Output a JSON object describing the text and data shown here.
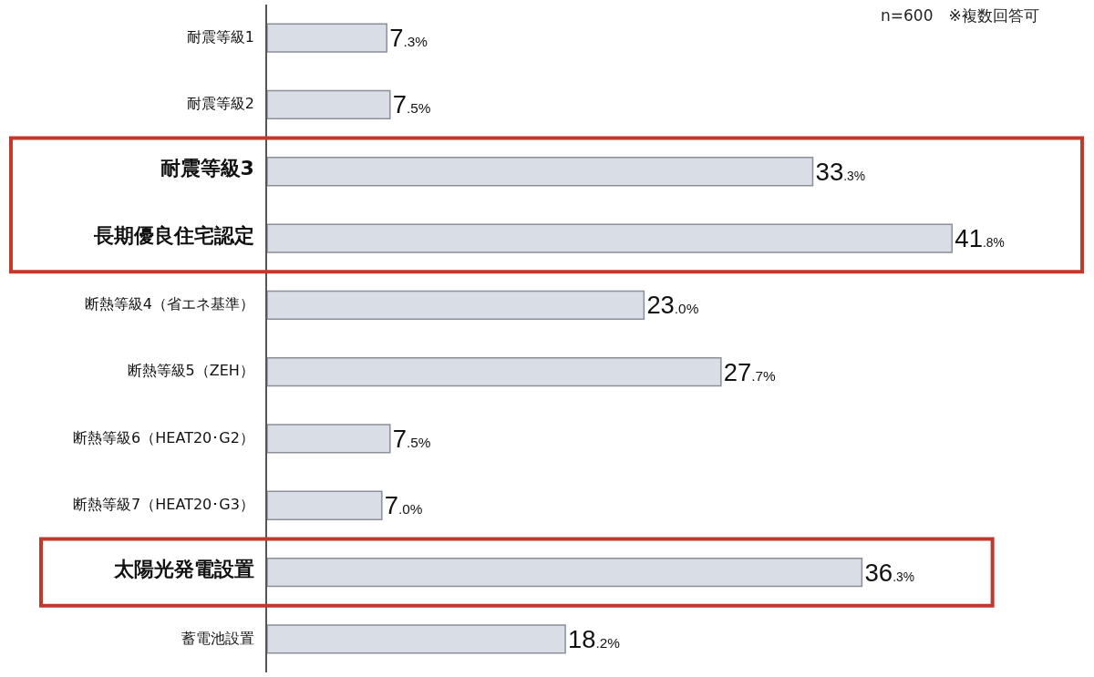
{
  "chart_data": {
    "type": "bar",
    "orientation": "horizontal",
    "categories": [
      "耐震等級1",
      "耐震等級2",
      "耐震等級3",
      "長期優良住宅認定",
      "断熱等級4（省エネ基準）",
      "断熱等級5（ZEH）",
      "断熱等級6（HEAT20･G2）",
      "断熱等級7（HEAT20･G3）",
      "太陽光発電設置",
      "蓄電池設置"
    ],
    "values": [
      7.3,
      7.5,
      33.3,
      41.8,
      23.0,
      27.7,
      7.5,
      7.0,
      36.3,
      18.2
    ],
    "value_labels": [
      "7.3%",
      "7.5%",
      "33.3%",
      "41.8%",
      "23.0%",
      "27.7%",
      "7.5%",
      "7.0%",
      "36.3%",
      "18.2%"
    ],
    "color": "#d9dde6",
    "annotations": [
      "n=600　※複数回答可"
    ]
  }
}
